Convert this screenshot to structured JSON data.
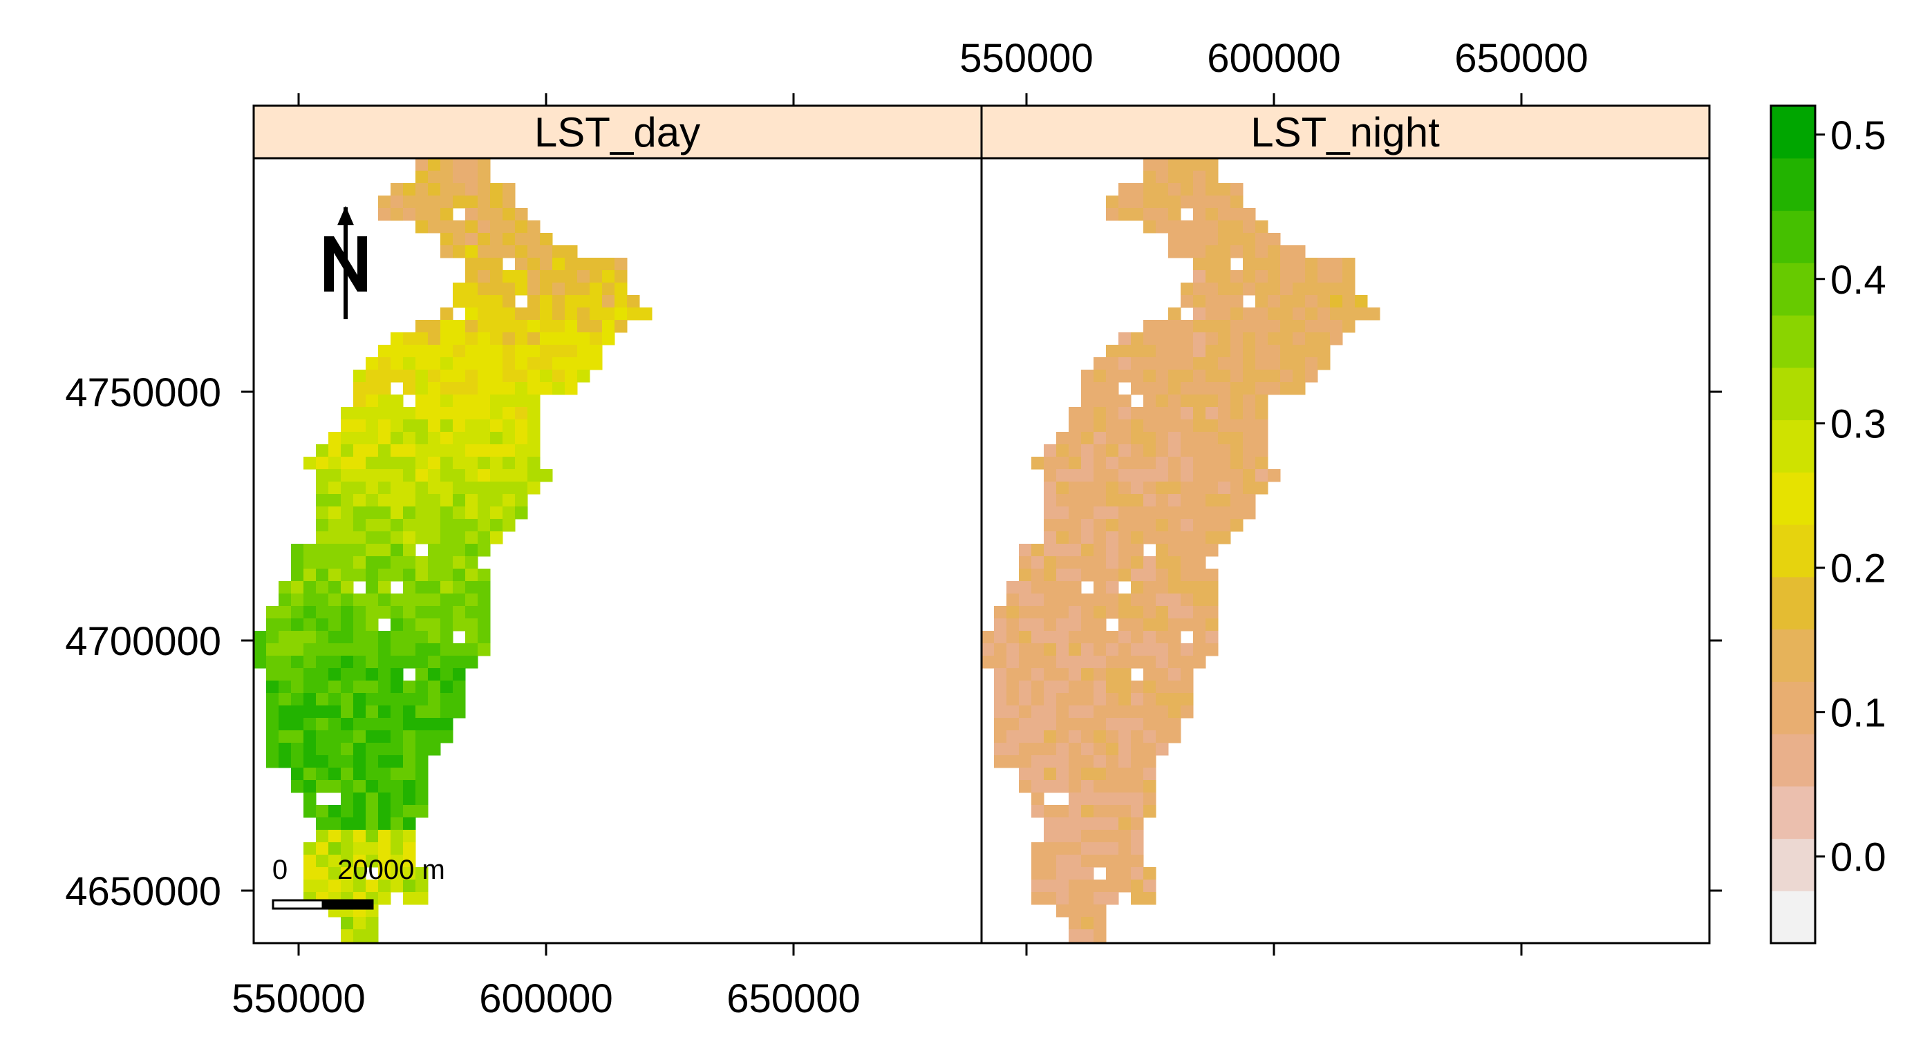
{
  "map": {
    "panels": [
      {
        "id": "day",
        "title": "LST_day"
      },
      {
        "id": "night",
        "title": "LST_night"
      }
    ],
    "x_tick_labels_bottom": [
      "550000",
      "600000",
      "650000"
    ],
    "x_tick_labels_top": [
      "550000",
      "600000",
      "650000"
    ],
    "y_tick_labels": [
      "4750000",
      "4700000",
      "4650000"
    ],
    "x_ticks": [
      550000,
      600000,
      650000
    ],
    "y_ticks": [
      4750000,
      4700000,
      4650000
    ],
    "xlim": [
      541000,
      688000
    ],
    "ylim": [
      4640000,
      4797000
    ],
    "north_arrow_label": "N",
    "scale_bar": {
      "zero_label": "0",
      "length_label": "20000 m",
      "length": 20000
    },
    "colorkey": {
      "tick_labels": [
        "0.5",
        "0.4",
        "0.3",
        "0.2",
        "0.1",
        "0.0"
      ],
      "ticks": [
        0.5,
        0.4,
        0.3,
        0.2,
        0.1,
        0.0
      ],
      "range": [
        -0.06,
        0.52
      ],
      "colors": [
        "#f2f2f2",
        "#ecd8d2",
        "#ebbfae",
        "#e9b08b",
        "#e8ae71",
        "#e6b35a",
        "#e4bc32",
        "#e6d30e",
        "#e6e200",
        "#cfe200",
        "#afdc00",
        "#8ad400",
        "#67ca00",
        "#45c000",
        "#22b300",
        "#00a600"
      ]
    },
    "strip_color": "#ffe5cc"
  }
}
